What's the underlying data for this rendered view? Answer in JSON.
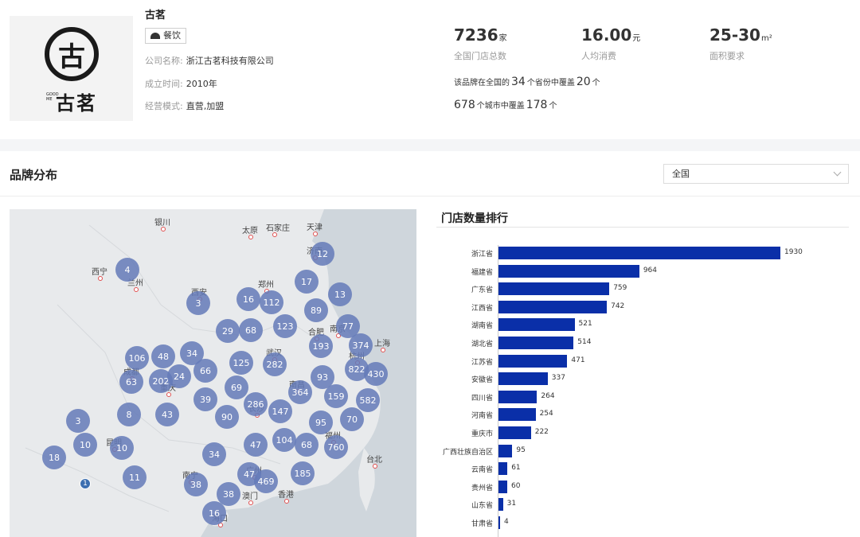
{
  "brand": {
    "name": "古茗",
    "logo_text": "古",
    "logo_wordmark": "古茗",
    "logo_small": "GOOD ME",
    "category_tag": "餐饮",
    "company_label": "公司名称:",
    "company_value": "浙江古茗科技有限公司",
    "founded_label": "成立时间:",
    "founded_value": "2010年",
    "mode_label": "经营模式:",
    "mode_value": "直营,加盟"
  },
  "stats": {
    "stores": {
      "value": "7236",
      "unit": "家",
      "label": "全国门店总数"
    },
    "spend": {
      "value": "16.00",
      "unit": "元",
      "label": "人均消费"
    },
    "area": {
      "value": "25-30",
      "unit": "m²",
      "label": "面积要求"
    }
  },
  "coverage": {
    "line1_a": "该品牌在全国的",
    "line1_n1": "34",
    "line1_b": "个省份中覆盖",
    "line1_n2": "20",
    "line1_c": "个",
    "line2_n1": "678",
    "line2_b": "个城市中覆盖",
    "line2_n2": "178",
    "line2_c": "个"
  },
  "distribution": {
    "title": "品牌分布",
    "region_selected": "全国"
  },
  "map": {
    "cities": [
      "银川",
      "太原",
      "石家庄",
      "天津",
      "西宁",
      "兰州",
      "西安",
      "郑州",
      "济南",
      "合肥",
      "南京",
      "上海",
      "武汉",
      "成都",
      "重庆",
      "南昌",
      "杭州",
      "长沙",
      "福州",
      "昆明",
      "南宁",
      "广州",
      "澳门",
      "香港",
      "台北",
      "海口"
    ],
    "bubbles": [
      "4",
      "12",
      "17",
      "3",
      "16",
      "112",
      "89",
      "13",
      "29",
      "68",
      "123",
      "77",
      "193",
      "374",
      "106",
      "48",
      "34",
      "66",
      "125",
      "282",
      "822",
      "430",
      "63",
      "202",
      "24",
      "93",
      "364",
      "159",
      "582",
      "39",
      "69",
      "286",
      "147",
      "8",
      "43",
      "90",
      "95",
      "70",
      "3",
      "10",
      "10",
      "47",
      "104",
      "68",
      "760",
      "18",
      "1",
      "11",
      "34",
      "47",
      "469",
      "185",
      "38",
      "38",
      "16"
    ]
  },
  "ranking": {
    "title": "门店数量排行",
    "color": "#0a2fa8"
  },
  "chart_data": {
    "type": "bar",
    "title": "门店数量排行",
    "orientation": "horizontal",
    "categories": [
      "浙江省",
      "福建省",
      "广东省",
      "江西省",
      "湖南省",
      "湖北省",
      "江苏省",
      "安徽省",
      "四川省",
      "河南省",
      "重庆市",
      "广西壮族自治区",
      "云南省",
      "贵州省",
      "山东省",
      "甘肃省"
    ],
    "values": [
      1930,
      964,
      759,
      742,
      521,
      514,
      471,
      337,
      264,
      254,
      222,
      95,
      61,
      60,
      31,
      4
    ],
    "xlim": [
      0,
      1930
    ],
    "grid": false
  }
}
